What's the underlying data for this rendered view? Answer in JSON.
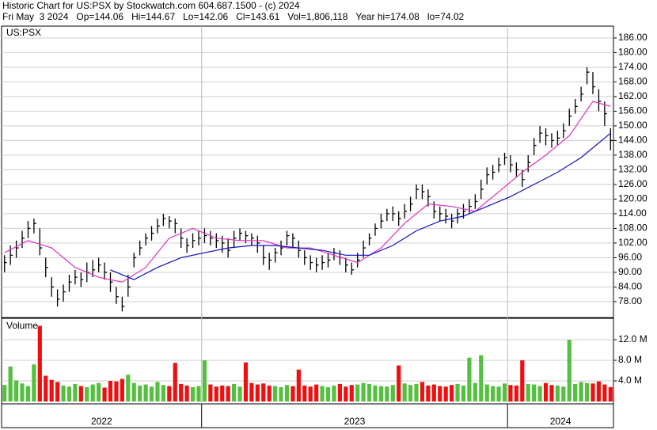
{
  "chart_data": {
    "type": "ohlc",
    "title": "Historic Chart for US:PSX by Stockwatch.com 604.687.1500 - (c) 2024",
    "subtitle": "Fri May  3 2024   Op=144.06   Hi=144.67   Lo=142.06   Cl=143.61   Vol=1,806,118   Year hi=174.08   lo=74.02",
    "symbol": "US:PSX",
    "bar_color": "#000000",
    "grid": true,
    "ylim": [
      71.8,
      190.2
    ],
    "yticks": [
      {
        "value": 78,
        "label": "78.00"
      },
      {
        "value": 84,
        "label": "84.00"
      },
      {
        "value": 90,
        "label": "90.00"
      },
      {
        "value": 96,
        "label": "96.00"
      },
      {
        "value": 102,
        "label": "102.00"
      },
      {
        "value": 108,
        "label": "108.00"
      },
      {
        "value": 114,
        "label": "114.00"
      },
      {
        "value": 120,
        "label": "120.00"
      },
      {
        "value": 126,
        "label": "126.00"
      },
      {
        "value": 132,
        "label": "132.00"
      },
      {
        "value": 138,
        "label": "138.00"
      },
      {
        "value": 144,
        "label": "144.00"
      },
      {
        "value": 150,
        "label": "150.00"
      },
      {
        "value": 156,
        "label": "156.00"
      },
      {
        "value": 162,
        "label": "162.00"
      },
      {
        "value": 168,
        "label": "168.00"
      },
      {
        "value": 174,
        "label": "174.00"
      },
      {
        "value": 180,
        "label": "180.00"
      },
      {
        "value": 186,
        "label": "186.00"
      }
    ],
    "high": [
      97,
      101,
      103,
      107,
      111,
      112,
      108,
      96,
      88,
      83,
      85,
      89,
      91,
      90,
      94,
      95,
      96,
      94,
      90,
      84,
      80,
      89,
      98,
      103,
      106,
      109,
      112,
      114,
      113,
      112,
      108,
      104,
      106,
      107,
      108,
      107,
      106,
      105,
      104,
      107,
      108,
      107,
      106,
      105,
      101,
      98,
      100,
      103,
      107,
      106,
      103,
      99,
      97,
      96,
      97,
      98,
      100,
      99,
      96,
      94,
      98,
      103,
      106,
      110,
      114,
      116,
      117,
      115,
      118,
      121,
      126,
      126,
      124,
      119,
      117,
      116,
      114,
      116,
      118,
      120,
      122,
      128,
      133,
      134,
      137,
      139,
      138,
      135,
      132,
      138,
      145,
      150,
      149,
      147,
      148,
      151,
      157,
      161,
      166,
      174,
      172,
      165,
      160,
      149
    ],
    "low": [
      90,
      93,
      96,
      100,
      104,
      106,
      97,
      88,
      80,
      76,
      78,
      82,
      85,
      84,
      86,
      88,
      90,
      87,
      82,
      77,
      74,
      80,
      92,
      97,
      101,
      103,
      106,
      109,
      108,
      106,
      100,
      98,
      100,
      101,
      102,
      101,
      100,
      98,
      96,
      100,
      103,
      102,
      101,
      98,
      93,
      91,
      94,
      97,
      101,
      100,
      96,
      93,
      91,
      90,
      91,
      92,
      95,
      93,
      90,
      89,
      92,
      96,
      101,
      105,
      108,
      111,
      111,
      109,
      112,
      115,
      120,
      120,
      117,
      112,
      111,
      110,
      108,
      110,
      112,
      114,
      116,
      120,
      126,
      128,
      131,
      134,
      131,
      129,
      125,
      131,
      138,
      143,
      142,
      141,
      142,
      145,
      150,
      155,
      160,
      167,
      163,
      156,
      150,
      140
    ],
    "close": [
      94,
      97,
      100,
      104,
      108,
      110,
      100,
      92,
      84,
      79,
      82,
      86,
      88,
      87,
      90,
      91,
      93,
      90,
      86,
      80,
      76,
      84,
      96,
      100,
      104,
      106,
      109,
      112,
      111,
      110,
      104,
      101,
      103,
      104,
      105,
      104,
      103,
      102,
      99,
      104,
      106,
      105,
      104,
      102,
      96,
      95,
      98,
      100,
      105,
      104,
      99,
      96,
      94,
      93,
      94,
      95,
      98,
      96,
      93,
      91,
      95,
      100,
      104,
      108,
      111,
      114,
      114,
      112,
      115,
      118,
      124,
      123,
      121,
      115,
      114,
      113,
      111,
      114,
      115,
      117,
      119,
      124,
      130,
      131,
      134,
      137,
      134,
      132,
      128,
      135,
      142,
      147,
      146,
      144,
      145,
      148,
      154,
      158,
      163,
      172,
      166,
      160,
      155,
      144
    ],
    "moving_averages": [
      {
        "color": "#e030c0",
        "x": [
          0,
          4,
          8,
          12,
          16,
          20,
          24,
          28,
          32,
          36,
          40,
          44,
          48,
          52,
          56,
          60,
          64,
          68,
          72,
          76,
          80,
          84,
          88,
          92,
          96,
          100,
          103
        ],
        "values": [
          98,
          103,
          100,
          92,
          88,
          86,
          92,
          104,
          108,
          104,
          103,
          103,
          100,
          100,
          97,
          94,
          100,
          110,
          118,
          117,
          115,
          123,
          131,
          138,
          146,
          160,
          158
        ]
      },
      {
        "color": "#1010c0",
        "x": [
          18,
          22,
          26,
          30,
          34,
          38,
          42,
          46,
          50,
          54,
          58,
          62,
          66,
          70,
          74,
          78,
          82,
          86,
          90,
          94,
          98,
          102,
          103
        ],
        "values": [
          91,
          87,
          92,
          96,
          98,
          100,
          101,
          101,
          100,
          99,
          97,
          97,
          101,
          107,
          111,
          113,
          117,
          121,
          126,
          131,
          137,
          145,
          147
        ]
      }
    ],
    "volume": {
      "label": "Volume",
      "up_color": "#55c040",
      "down_color": "#ee1010",
      "ylim": [
        0,
        16
      ],
      "yticks": [
        {
          "value": 4,
          "label": "4.0 M"
        },
        {
          "value": 8,
          "label": "8.0 M"
        },
        {
          "value": 12,
          "label": "12.0 M"
        }
      ],
      "values": [
        3.2,
        6.8,
        4.1,
        3.5,
        3.0,
        7.2,
        14.7,
        5.0,
        4.2,
        3.8,
        3.1,
        2.9,
        3.4,
        3.0,
        2.8,
        3.3,
        3.6,
        2.7,
        4.0,
        3.9,
        4.4,
        5.2,
        3.6,
        3.1,
        3.3,
        2.9,
        3.8,
        3.2,
        3.0,
        7.5,
        3.4,
        3.1,
        2.8,
        3.0,
        8.0,
        3.3,
        2.9,
        3.1,
        3.0,
        3.4,
        2.9,
        7.6,
        3.6,
        3.3,
        3.5,
        3.1,
        3.0,
        2.8,
        3.2,
        3.0,
        6.2,
        3.1,
        2.9,
        3.3,
        3.0,
        2.8,
        3.1,
        3.4,
        2.9,
        3.2,
        3.3,
        3.6,
        3.4,
        3.1,
        3.0,
        2.9,
        3.2,
        7.0,
        3.5,
        3.2,
        3.4,
        3.8,
        3.1,
        3.3,
        3.0,
        2.9,
        3.2,
        3.4,
        3.1,
        8.5,
        3.6,
        9.0,
        3.3,
        3.0,
        2.9,
        3.5,
        3.2,
        3.1,
        8.0,
        3.4,
        3.3,
        3.0,
        3.6,
        3.2,
        3.1,
        2.9,
        12.0,
        3.4,
        3.8,
        3.6,
        3.5,
        3.9,
        3.3,
        2.8
      ]
    },
    "years": [
      {
        "label": "2022",
        "weeks": 34
      },
      {
        "label": "2023",
        "weeks": 52
      },
      {
        "label": "2024",
        "weeks": 18
      }
    ]
  }
}
